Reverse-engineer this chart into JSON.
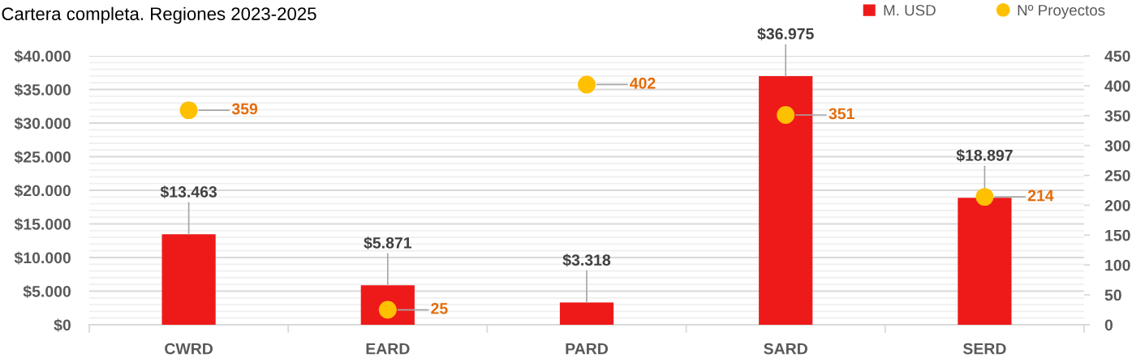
{
  "chart_data": {
    "type": "bar",
    "title": "Cartera completa. Regiones 2023-2025",
    "categories": [
      "CWRD",
      "EARD",
      "PARD",
      "SARD",
      "SERD"
    ],
    "series": [
      {
        "name": "M. USD",
        "color": "#ee1a1a",
        "values": [
          13463,
          5871,
          3318,
          36975,
          18897
        ],
        "value_labels": [
          "$13.463",
          "$5.871",
          "$3.318",
          "$36.975",
          "$18.897"
        ]
      },
      {
        "name": "Nº Proyectos",
        "type": "scatter",
        "axis": "y2",
        "marker": "circle",
        "color": "#ffc000",
        "values": [
          359,
          25,
          402,
          351,
          214
        ],
        "value_labels": [
          "359",
          "25",
          "402",
          "351",
          "214"
        ]
      }
    ],
    "ylim": [
      0,
      40000
    ],
    "yticks": [
      {
        "value": 0,
        "label": "$0"
      },
      {
        "value": 1000,
        "label": null
      },
      {
        "value": 2000,
        "label": null
      },
      {
        "value": 3000,
        "label": null
      },
      {
        "value": 4000,
        "label": null
      },
      {
        "value": 5000,
        "label": "$5.000"
      },
      {
        "value": 6000,
        "label": null
      },
      {
        "value": 7000,
        "label": null
      },
      {
        "value": 8000,
        "label": null
      },
      {
        "value": 9000,
        "label": null
      },
      {
        "value": 10000,
        "label": "$10.000"
      },
      {
        "value": 11000,
        "label": null
      },
      {
        "value": 12000,
        "label": null
      },
      {
        "value": 13000,
        "label": null
      },
      {
        "value": 14000,
        "label": null
      },
      {
        "value": 15000,
        "label": "$15.000"
      },
      {
        "value": 16000,
        "label": null
      },
      {
        "value": 17000,
        "label": null
      },
      {
        "value": 18000,
        "label": null
      },
      {
        "value": 19000,
        "label": null
      },
      {
        "value": 20000,
        "label": "$20.000"
      },
      {
        "value": 21000,
        "label": null
      },
      {
        "value": 22000,
        "label": null
      },
      {
        "value": 23000,
        "label": null
      },
      {
        "value": 24000,
        "label": null
      },
      {
        "value": 25000,
        "label": "$25.000"
      },
      {
        "value": 26000,
        "label": null
      },
      {
        "value": 27000,
        "label": null
      },
      {
        "value": 28000,
        "label": null
      },
      {
        "value": 29000,
        "label": null
      },
      {
        "value": 30000,
        "label": "$30.000"
      },
      {
        "value": 31000,
        "label": null
      },
      {
        "value": 32000,
        "label": null
      },
      {
        "value": 33000,
        "label": null
      },
      {
        "value": 34000,
        "label": null
      },
      {
        "value": 35000,
        "label": "$35.000"
      },
      {
        "value": 36000,
        "label": null
      },
      {
        "value": 37000,
        "label": null
      },
      {
        "value": 38000,
        "label": null
      },
      {
        "value": 39000,
        "label": null
      },
      {
        "value": 40000,
        "label": "$40.000"
      }
    ],
    "y2lim": [
      0,
      450
    ],
    "y2ticks": [
      0,
      50,
      100,
      150,
      200,
      250,
      300,
      350,
      400,
      450
    ],
    "grid": "y",
    "legend": "top right"
  }
}
